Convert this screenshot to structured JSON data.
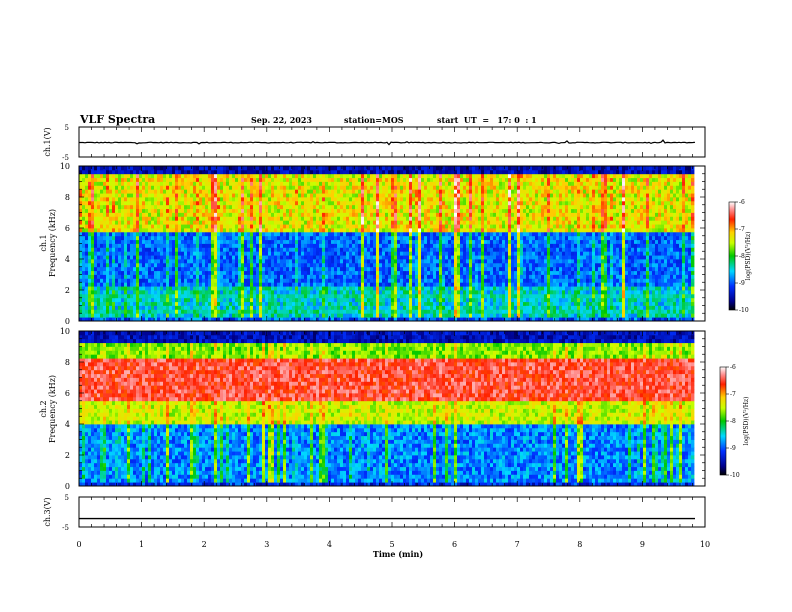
{
  "header": {
    "title": "VLF Spectra",
    "date": "Sep. 22, 2023",
    "station": "station=MOS",
    "start": "start  UT  =   17: 0  : 1"
  },
  "chart_data": [
    {
      "type": "line",
      "name": "ch1-waveform",
      "ylabel": "ch.1(V)",
      "ylim": [
        -5,
        5
      ],
      "y_ticks": [
        "5",
        "-5"
      ],
      "baseline": -0.2,
      "noise": "small spikes"
    },
    {
      "type": "heatmap",
      "name": "ch1-spectrogram",
      "ylabel_line1": "ch.1",
      "ylabel_line2": "Frequency (kHz)",
      "ylim": [
        0,
        10
      ],
      "y_ticks": [
        "0",
        "2",
        "4",
        "6",
        "8",
        "10"
      ],
      "colorbar": {
        "label": "log(PSD)(V²/Hz)",
        "range": [
          -10,
          -6
        ],
        "ticks": [
          "-6",
          "-7",
          "-8",
          "-9",
          "-10"
        ]
      },
      "profile_note": "strong red/yellow sferic columns 6-9 kHz, blue background 2-6 kHz, cyan horizontal lines near 0.5-2 kHz"
    },
    {
      "type": "heatmap",
      "name": "ch2-spectrogram",
      "ylabel_line1": "ch.2",
      "ylabel_line2": "Frequency (kHz)",
      "ylim": [
        0,
        10
      ],
      "y_ticks": [
        "0",
        "2",
        "4",
        "6",
        "8",
        "10"
      ],
      "colorbar": {
        "label": "log(PSD)(V²/Hz)",
        "range": [
          -10,
          -6
        ],
        "ticks": [
          "-6",
          "-7",
          "-8",
          "-9",
          "-10"
        ]
      },
      "profile_note": "broad red band 5.5-8 kHz, green/yellow 4-5 and 8-9 kHz, blue below 4 kHz"
    },
    {
      "type": "line",
      "name": "ch3-waveform",
      "ylabel": "ch.3(V)",
      "ylim": [
        -5,
        5
      ],
      "y_ticks": [
        "5",
        "-5"
      ],
      "baseline": -2.2
    }
  ],
  "x_axis": {
    "label": "Time (min)",
    "range": [
      0,
      10
    ],
    "ticks": [
      "0",
      "1",
      "2",
      "3",
      "4",
      "5",
      "6",
      "7",
      "8",
      "9",
      "10"
    ],
    "data_end": 9.85
  },
  "colors": {
    "axis": "#000000",
    "background": "#ffffff"
  }
}
